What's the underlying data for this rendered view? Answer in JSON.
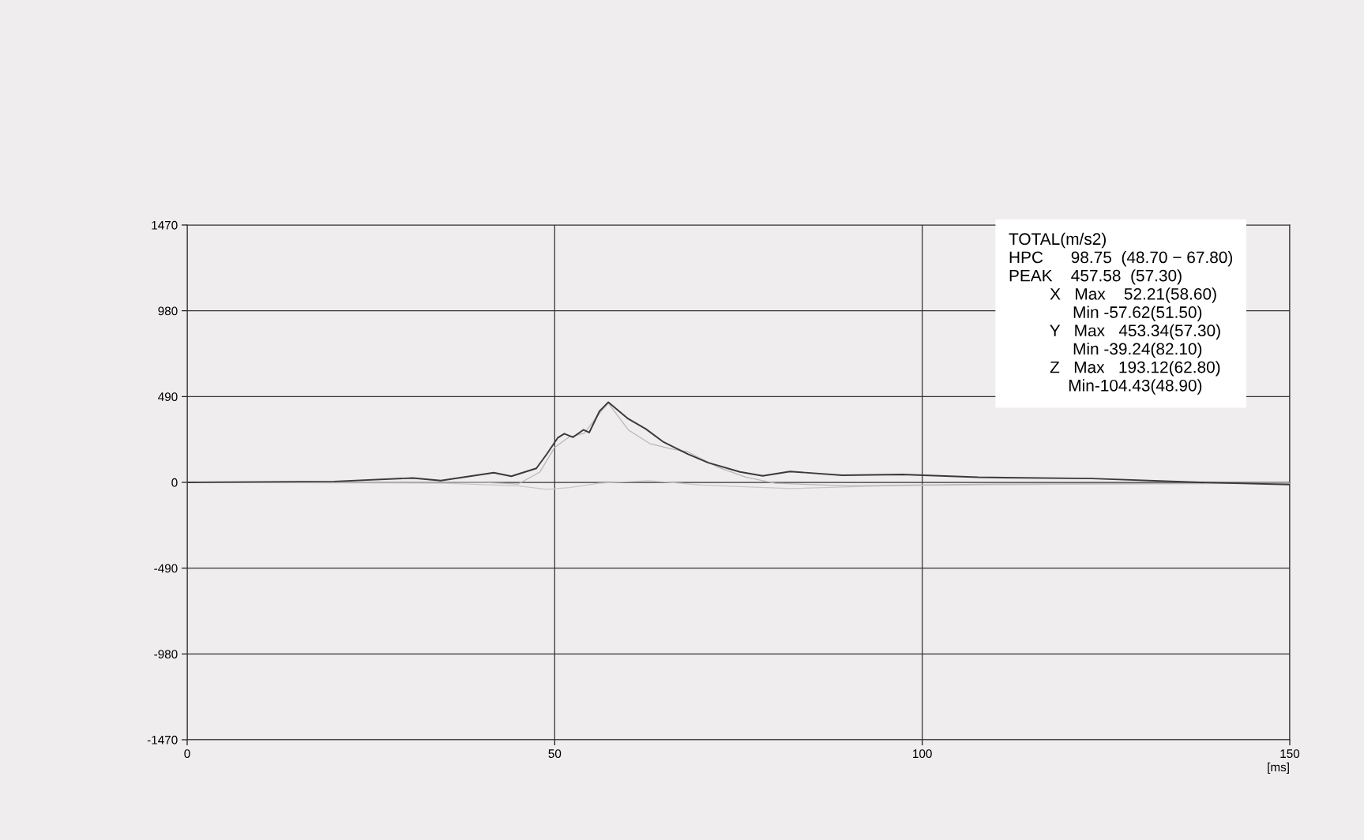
{
  "chart_data": {
    "type": "line",
    "xlabel": "[ms]",
    "xlim": [
      0,
      150
    ],
    "xticks": [
      0,
      50,
      100,
      150
    ],
    "ylim": [
      -1470,
      1470
    ],
    "yticks": [
      -1470,
      -980,
      -490,
      0,
      490,
      980,
      1470
    ],
    "grid": true,
    "legend": false,
    "marker": "none",
    "line_style": "solid",
    "series": [
      {
        "color": "#3a3a3a",
        "x": [
          0,
          20,
          30.7,
          34.5,
          41.7,
          44.1,
          47.5,
          48.9,
          50.4,
          51.3,
          52.5,
          53.9,
          54.7,
          56.1,
          57.3,
          59.9,
          62.4,
          64.7,
          68.1,
          70.9,
          75.2,
          78.3,
          82.0,
          89.1,
          97.3,
          107.6,
          123.1,
          137.7,
          149.9
        ],
        "values": [
          0,
          5,
          25,
          10,
          55,
          35,
          80,
          160,
          254,
          278,
          258,
          300,
          285,
          407,
          458,
          366,
          305,
          233,
          162,
          112,
          60,
          37,
          62,
          41,
          45,
          29,
          22,
          0,
          -12
        ]
      },
      {
        "color": "#b8b8b8",
        "x": [
          0,
          40,
          45,
          48,
          50,
          52,
          54,
          56,
          57.3,
          60,
          63,
          66,
          68.1,
          72,
          76,
          80,
          90,
          110,
          150
        ],
        "values": [
          0,
          0,
          -10,
          60,
          200,
          260,
          280,
          390,
          453,
          300,
          220,
          190,
          175,
          90,
          30,
          -5,
          -20,
          -10,
          -5
        ]
      },
      {
        "color": "#c8c8c8",
        "x": [
          0,
          35,
          45,
          48.9,
          52,
          56,
          62.8,
          70,
          82.1,
          95,
          120,
          150
        ],
        "values": [
          0,
          -5,
          -20,
          -40,
          -30,
          -5,
          10,
          -15,
          -35,
          -20,
          -10,
          -5
        ]
      }
    ],
    "annotations": [
      "TOTAL(m/s2)",
      "HPC      98.75  (48.70 − 67.80)",
      "PEAK    457.58  (57.30)",
      "         X   Max    52.21(58.60)",
      "              Min -57.62(51.50)",
      "         Y   Max   453.34(57.30)",
      "              Min -39.24(82.10)",
      "         Z   Max   193.12(62.80)",
      "             Min-104.43(48.90)"
    ]
  }
}
